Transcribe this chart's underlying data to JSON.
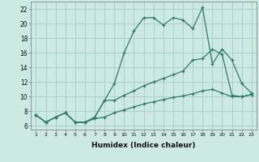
{
  "x": [
    1,
    2,
    3,
    4,
    5,
    6,
    7,
    8,
    9,
    10,
    11,
    12,
    13,
    14,
    15,
    16,
    17,
    18,
    19,
    20,
    21,
    22,
    23
  ],
  "line1": [
    7.5,
    6.5,
    7.2,
    7.8,
    6.5,
    6.5,
    7.2,
    9.5,
    11.8,
    16.0,
    19.0,
    20.8,
    20.8,
    19.8,
    20.8,
    20.5,
    19.3,
    22.2,
    14.5,
    16.5,
    15.0,
    11.8,
    10.5
  ],
  "line2": [
    7.5,
    6.5,
    7.2,
    7.8,
    6.5,
    6.5,
    7.2,
    9.5,
    9.5,
    10.2,
    10.8,
    11.5,
    12.0,
    12.5,
    13.0,
    13.5,
    15.0,
    15.2,
    16.5,
    15.8,
    10.2,
    10.0,
    10.3
  ],
  "line3": [
    7.5,
    6.5,
    7.2,
    7.8,
    6.5,
    6.5,
    7.0,
    7.2,
    7.8,
    8.2,
    8.6,
    9.0,
    9.3,
    9.6,
    9.9,
    10.1,
    10.4,
    10.8,
    11.0,
    10.5,
    10.0,
    10.0,
    10.3
  ],
  "color": "#2d7d6f",
  "bg_color": "#cce9e4",
  "grid_color": "#aacfca",
  "ylabel_values": [
    6,
    8,
    10,
    12,
    14,
    16,
    18,
    20,
    22
  ],
  "xlabel": "Humidex (Indice chaleur)",
  "ylim": [
    5.5,
    23.0
  ],
  "xlim": [
    0.5,
    23.5
  ],
  "xticks": [
    1,
    2,
    3,
    4,
    5,
    6,
    7,
    8,
    9,
    10,
    11,
    12,
    13,
    14,
    15,
    16,
    17,
    18,
    19,
    20,
    21,
    22,
    23
  ]
}
